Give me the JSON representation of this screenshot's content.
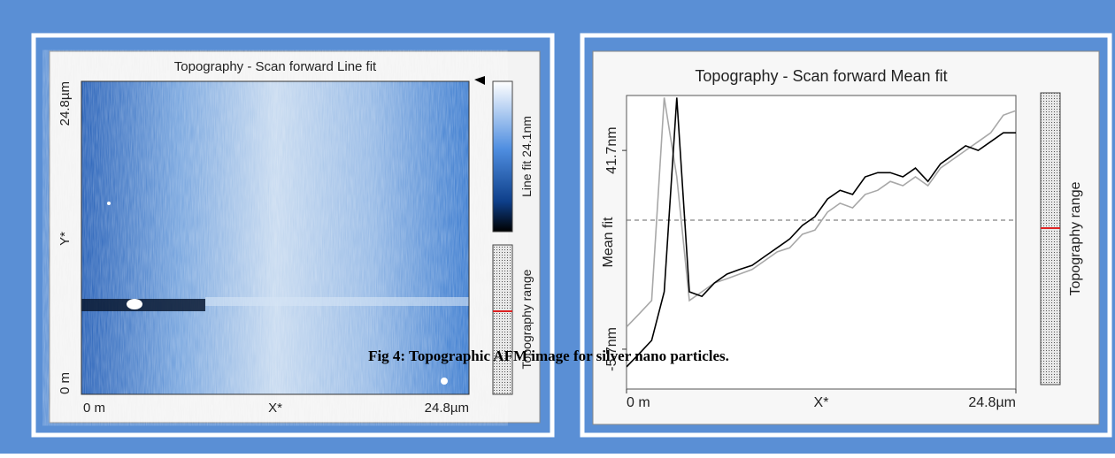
{
  "caption": "Fig 4:  Topographic AFM image for silver nano particles.",
  "left_panel": {
    "title": "Topography - Scan forward   Line fit",
    "x_label": "X*",
    "y_label": "Y*",
    "x_ticks": [
      "0 m",
      "24.8µm"
    ],
    "y_ticks": [
      "0 m",
      "24.8µm"
    ],
    "colorbar_label": "Line fit 24.1nm",
    "range_label": "Topography range"
  },
  "chart_data": {
    "type": "line",
    "title": "Topography - Scan forward   Mean fit",
    "x_label": "X*",
    "y_label": "Mean fit",
    "range_label": "Topography range",
    "x": [
      0,
      0.8,
      1.6,
      2.4,
      3.2,
      4,
      4.8,
      5.6,
      6.4,
      7.2,
      8,
      8.8,
      9.6,
      10.4,
      11.2,
      12,
      12.8,
      13.6,
      14.4,
      15.2,
      16,
      16.8,
      17.6,
      18.4,
      19.2,
      20,
      20.8,
      21.6,
      22.4,
      23.2,
      24,
      24.8
    ],
    "series": [
      {
        "color": "#000000",
        "values": [
          -9.9,
          -6.8,
          -3.6,
          8.0,
          54.3,
          8.0,
          6.9,
          10.1,
          12.2,
          13.3,
          14.3,
          16.4,
          18.5,
          20.6,
          23.8,
          25.9,
          30.1,
          32.2,
          31.2,
          35.4,
          36.4,
          36.4,
          35.4,
          37.5,
          34.3,
          38.5,
          40.6,
          42.8,
          41.7,
          43.8,
          45.9,
          45.9
        ]
      },
      {
        "color": "#a8a8a8",
        "values": [
          -0.4,
          2.7,
          5.9,
          54.3,
          35.4,
          5.9,
          8.0,
          10.1,
          11.1,
          12.2,
          13.3,
          15.4,
          17.5,
          18.5,
          21.7,
          22.7,
          27.0,
          29.1,
          28.0,
          31.2,
          32.2,
          34.3,
          33.3,
          35.4,
          33.3,
          37.5,
          39.6,
          41.7,
          43.8,
          45.9,
          50.1,
          51.2
        ]
      }
    ],
    "xlim": [
      0,
      24.8
    ],
    "xticks": [
      {
        "value": 0,
        "label": "0 m"
      },
      {
        "value": 24.8,
        "label": "24.8µm"
      }
    ],
    "ylim": [
      -15.2,
      54.8
    ],
    "yticks": [
      {
        "value": 41.7,
        "label": "41.7nm"
      },
      {
        "value": -5.7,
        "label": "-5.7nm"
      }
    ]
  }
}
